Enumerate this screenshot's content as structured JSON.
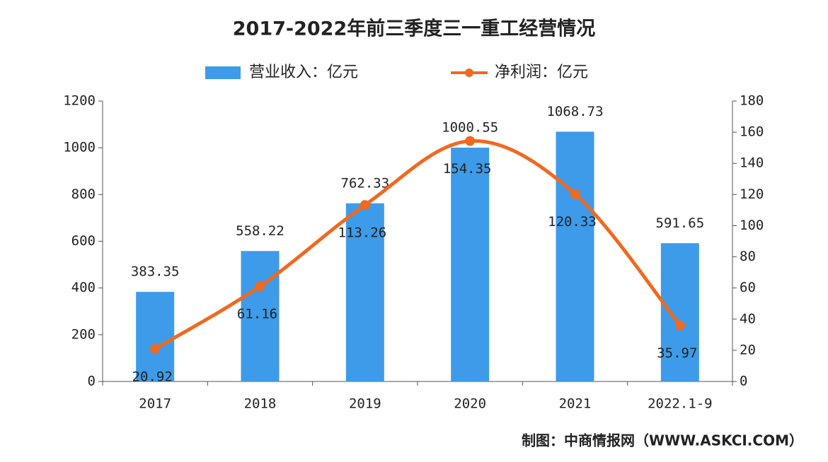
{
  "chart_data": {
    "type": "combo",
    "title": "2017-2022年前三季度三一重工经营情况",
    "categories": [
      "2017",
      "2018",
      "2019",
      "2020",
      "2021",
      "2022.1-9"
    ],
    "series": [
      {
        "name": "营业收入：亿元",
        "type": "bar",
        "color": "#3d9be9",
        "values": [
          383.35,
          558.22,
          762.33,
          1000.55,
          1068.73,
          591.65
        ]
      },
      {
        "name": "净利润：亿元",
        "type": "line",
        "axis": "y2",
        "color": "#ee6a20",
        "values": [
          20.92,
          61.16,
          113.26,
          154.35,
          120.33,
          35.97
        ]
      }
    ],
    "ylim": [
      0,
      1200
    ],
    "yticks": [
      0,
      200,
      400,
      600,
      800,
      1000,
      1200
    ],
    "y2lim": [
      0,
      180
    ],
    "y2ticks": [
      0,
      20,
      40,
      60,
      80,
      100,
      120,
      140,
      160,
      180
    ],
    "source": "制图：中商情报网（WWW.ASKCI.COM）"
  }
}
